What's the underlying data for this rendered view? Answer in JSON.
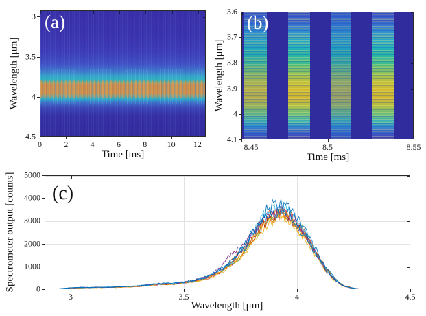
{
  "palette": {
    "figure_background": "#ffffff",
    "axis_color": "#2b2b2b",
    "grid_color": "#e2e2e2",
    "heatmap_deep_blue": "#342da4",
    "heatmap_gap_blue": "#302c9e",
    "heatmap_cyan": "#28b0c8",
    "heatmap_teal_green": "#46bd8b",
    "heatmap_yellow": "#ccba32",
    "heatmap_band_orange": "#c8904f",
    "panel_letter_light": "#ffffff",
    "panel_letter_dark": "#111111"
  },
  "chart_data": [
    {
      "type": "heatmap",
      "panel": "(a)",
      "xlabel": "Time [ms]",
      "ylabel": "Wavelength [μm]",
      "xlim": [
        0,
        12.63
      ],
      "ylim_top_to_bottom": [
        2.92,
        4.5
      ],
      "xtick_values": [
        0,
        2,
        4,
        6,
        8,
        10,
        12
      ],
      "xtick_labels": [
        "0",
        "2",
        "4",
        "6",
        "8",
        "10",
        "12"
      ],
      "ytick_values": [
        3,
        3.5,
        4,
        4.5
      ],
      "ytick_labels": [
        "3",
        "3.5",
        "4",
        "4.5"
      ],
      "description": "Continuous bright emission band centered near 3.9 um (bright 3.8-4.0 um, cyan halo 3.55-4.15 um) persisting over 0-12.6 ms with fine vertical temporal striations on a deep-blue background",
      "band": {
        "center_um": 3.9,
        "bright_um": [
          3.8,
          4.0
        ],
        "halo_um": [
          3.55,
          4.15
        ]
      }
    },
    {
      "type": "heatmap",
      "panel": "(b)",
      "xlabel": "Time [ms]",
      "ylabel": "Wavelength [μm]",
      "xlim": [
        8.45,
        8.55
      ],
      "ylim_top_to_bottom": [
        3.6,
        4.1
      ],
      "xtick_values": [
        8.45,
        8.5,
        8.55
      ],
      "xtick_labels": [
        "8.45",
        "8.5",
        "8.55"
      ],
      "ytick_values": [
        3.6,
        3.7,
        3.8,
        3.9,
        4,
        4.1
      ],
      "ytick_labels": [
        "3.6",
        "3.7",
        "3.8",
        "3.9",
        "4",
        "4.1"
      ],
      "description": "Zoom of (a): four discrete pulses; each pulse spans 3.6-4.1 um with strongest yellow emission between ~3.83 and 4.0 um and fine horizontal spectral lines; dark blue between pulses",
      "pulses": [
        {
          "x_frac": 0.012,
          "w_frac": 0.132,
          "intensity": "medium"
        },
        {
          "x_frac": 0.268,
          "w_frac": 0.128,
          "intensity": "high"
        },
        {
          "x_frac": 0.518,
          "w_frac": 0.122,
          "intensity": "low"
        },
        {
          "x_frac": 0.765,
          "w_frac": 0.125,
          "intensity": "high"
        }
      ]
    },
    {
      "type": "line",
      "panel": "(c)",
      "xlabel": "Wavelength [μm]",
      "ylabel": "Spectrometer output [counts]",
      "xlim": [
        2.885,
        4.5
      ],
      "ylim": [
        0,
        5000
      ],
      "xtick_values": [
        3,
        3.5,
        4,
        4.5
      ],
      "xtick_labels": [
        "3",
        "3.5",
        "4",
        "4.5"
      ],
      "ytick_values": [
        0,
        1000,
        2000,
        3000,
        4000,
        5000
      ],
      "ytick_labels": [
        "0",
        "1000",
        "2000",
        "3000",
        "4000",
        "5000"
      ],
      "grid": true,
      "n_traces": 10,
      "trace_colors": [
        "#0072BD",
        "#D95319",
        "#EDB120",
        "#7E2F8E",
        "#77AC30",
        "#4DBEEE",
        "#A2142F"
      ],
      "trace_scales": [
        1.04,
        0.96,
        0.88,
        0.98,
        0.93,
        1.0,
        0.95,
        0.97,
        0.92,
        0.9
      ],
      "trace_x_offsets": [
        0,
        0.003,
        -0.003,
        0.005,
        -0.005,
        0.002,
        -0.002,
        0.004,
        -0.004,
        0.001
      ],
      "noise": {
        "rel": 0.11,
        "abs": 8
      },
      "special_bump": {
        "trace": 3,
        "center_um": 3.705,
        "sigma_um": 0.03,
        "amplitude": 320
      },
      "envelope": {
        "x": [
          2.885,
          2.95,
          3.0,
          3.05,
          3.1,
          3.2,
          3.3,
          3.38,
          3.45,
          3.5,
          3.55,
          3.6,
          3.65,
          3.7,
          3.73,
          3.78,
          3.82,
          3.86,
          3.9,
          3.93,
          3.96,
          4.0,
          4.04,
          4.08,
          4.12,
          4.16,
          4.2,
          4.25,
          4.3,
          4.4,
          4.5
        ],
        "y": [
          15,
          45,
          85,
          105,
          110,
          125,
          170,
          260,
          280,
          340,
          430,
          570,
          820,
          1180,
          1480,
          2100,
          2750,
          3280,
          3560,
          3600,
          3460,
          3000,
          2430,
          1700,
          1000,
          500,
          190,
          60,
          18,
          7,
          6
        ]
      },
      "peak": {
        "x_um": 3.9,
        "max_counts": 4100
      }
    }
  ]
}
